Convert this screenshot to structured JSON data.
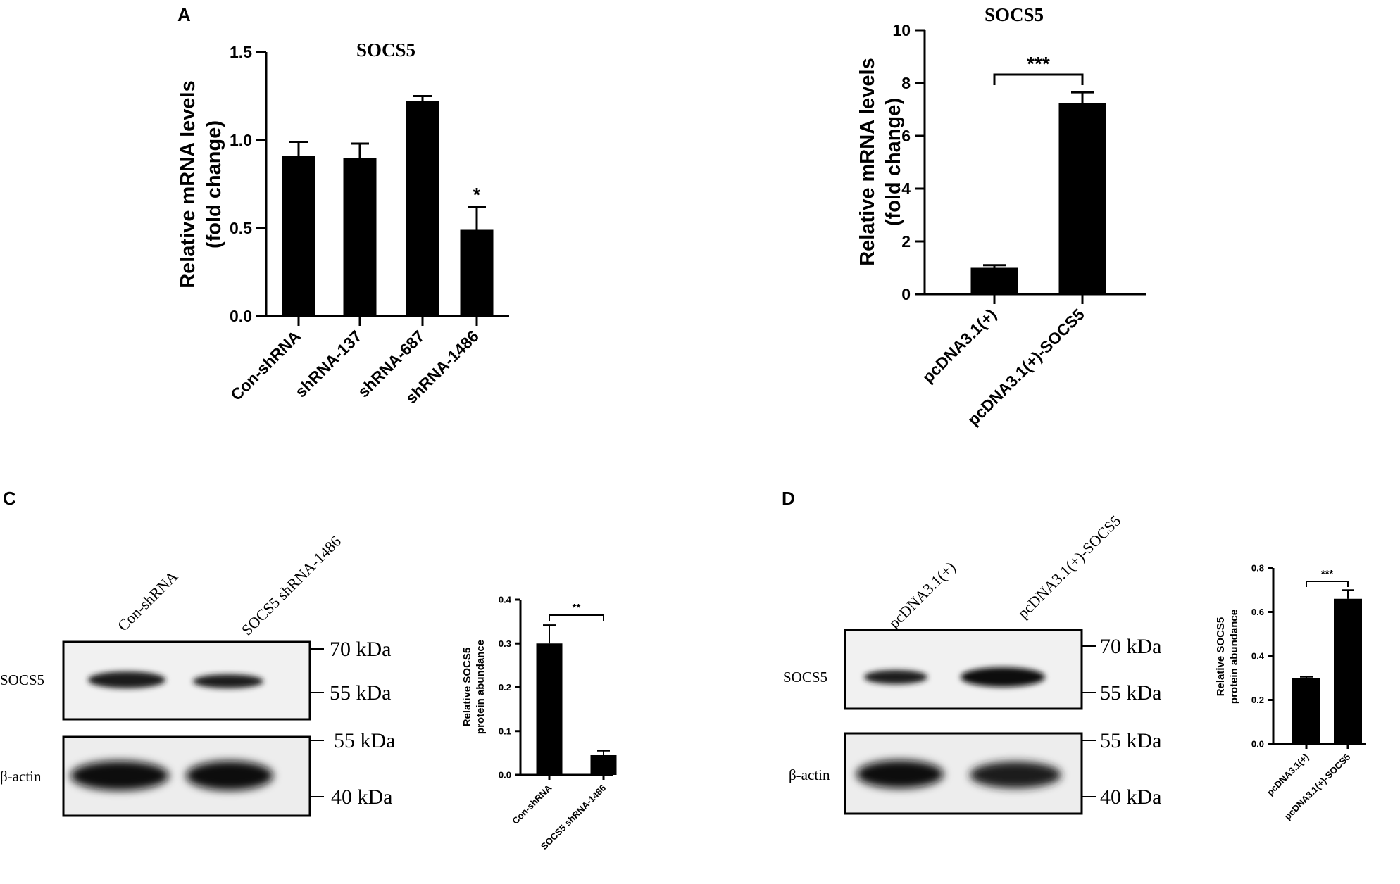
{
  "panels": {
    "A": "A",
    "C": "C",
    "D": "D"
  },
  "chart_data": [
    {
      "id": "A1",
      "type": "bar",
      "title": "SOCS5",
      "ylabel": "Relative mRNA levels\n(fold change)",
      "categories": [
        "Con-shRNA",
        "shRNA-137",
        "shRNA-687",
        "shRNA-1486"
      ],
      "values": [
        0.91,
        0.9,
        1.22,
        0.49
      ],
      "errors": [
        0.08,
        0.08,
        0.03,
        0.13
      ],
      "significance": [
        "",
        "",
        "",
        "*"
      ],
      "ylim": [
        0,
        1.5
      ],
      "yticks": [
        0.0,
        0.5,
        1.0,
        1.5
      ],
      "ytick_labels": [
        "0.0",
        "0.5",
        "1.0",
        "1.5"
      ]
    },
    {
      "id": "A2",
      "type": "bar",
      "title": "SOCS5",
      "ylabel": "Relative mRNA levels\n(fold change)",
      "categories": [
        "pcDNA3.1(+)",
        "pcDNA3.1(+)-SOCS5"
      ],
      "values": [
        1.0,
        7.25
      ],
      "errors": [
        0.1,
        0.4
      ],
      "bracket": "***",
      "ylim": [
        0,
        10
      ],
      "yticks": [
        0,
        2,
        4,
        6,
        8,
        10
      ],
      "ytick_labels": [
        "0",
        "2",
        "4",
        "6",
        "8",
        "10"
      ]
    },
    {
      "id": "C",
      "type": "bar",
      "title": "",
      "ylabel": "Relative SOCS5\nprotein abundance",
      "categories": [
        "Con-shRNA",
        "SOCS5 shRNA-1486"
      ],
      "values": [
        0.3,
        0.045
      ],
      "errors": [
        0.042,
        0.01
      ],
      "bracket": "**",
      "ylim": [
        0,
        0.4
      ],
      "yticks": [
        0.0,
        0.1,
        0.2,
        0.3,
        0.4
      ],
      "ytick_labels": [
        "0.0",
        "0.1",
        "0.2",
        "0.3",
        "0.4"
      ]
    },
    {
      "id": "D",
      "type": "bar",
      "title": "",
      "ylabel": "Relative SOCS5\nprotein abundance",
      "categories": [
        "pcDNA3.1(+)",
        "pcDNA3.1(+)-SOCS5"
      ],
      "values": [
        0.3,
        0.66
      ],
      "errors": [
        0.005,
        0.04
      ],
      "bracket": "***",
      "ylim": [
        0,
        0.8
      ],
      "yticks": [
        0.0,
        0.2,
        0.4,
        0.6,
        0.8
      ],
      "ytick_labels": [
        "0.0",
        "0.2",
        "0.4",
        "0.6",
        "0.8"
      ]
    }
  ],
  "blots": {
    "C": {
      "lanes": [
        "Con-shRNA",
        "SOCS5  shRNA-1486"
      ],
      "rows": [
        "SOCS5",
        "β-actin"
      ],
      "markers_top": [
        "70 kDa",
        "55 kDa"
      ],
      "markers_bottom": [
        "55 kDa",
        "40 kDa"
      ],
      "socs5_band_intensity": [
        0.85,
        0.35
      ],
      "actin_band_intensity": [
        1.0,
        1.0
      ]
    },
    "D": {
      "lanes": [
        "pcDNA3.1(+)",
        "pcDNA3.1(+)-SOCS5"
      ],
      "rows": [
        "SOCS5",
        "β-actin"
      ],
      "markers_top": [
        "70 kDa",
        "55 kDa"
      ],
      "markers_bottom": [
        "55 kDa",
        "40 kDa"
      ],
      "socs5_band_intensity": [
        0.55,
        0.95
      ],
      "actin_band_intensity": [
        1.0,
        0.8
      ]
    }
  }
}
